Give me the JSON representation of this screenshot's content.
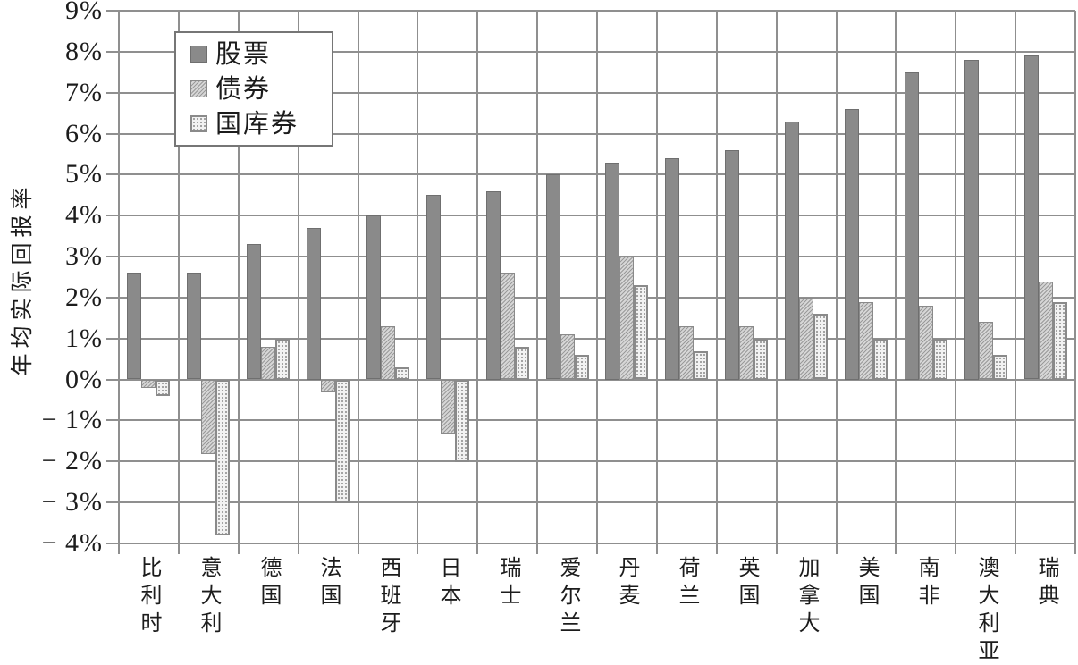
{
  "chart_data": {
    "type": "bar",
    "title": "",
    "xlabel": "",
    "ylabel": "年均实际回报率",
    "categories": [
      "比利时",
      "意大利",
      "德国",
      "法国",
      "西班牙",
      "日本",
      "瑞士",
      "爱尔兰",
      "丹麦",
      "荷兰",
      "英国",
      "加拿大",
      "美国",
      "南非",
      "澳大利亚",
      "瑞典"
    ],
    "series": [
      {
        "name": "股票",
        "values": [
          2.6,
          2.6,
          3.3,
          3.7,
          4.0,
          4.5,
          4.6,
          5.0,
          5.3,
          5.4,
          5.6,
          6.3,
          6.6,
          7.5,
          7.8,
          7.9
        ]
      },
      {
        "name": "债券",
        "values": [
          -0.2,
          -1.8,
          0.8,
          -0.3,
          1.3,
          -1.3,
          2.6,
          1.1,
          3.0,
          1.3,
          1.3,
          2.0,
          1.9,
          1.8,
          1.4,
          2.4
        ]
      },
      {
        "name": "国库券",
        "values": [
          -0.4,
          -3.8,
          1.0,
          -3.0,
          0.3,
          -2.0,
          0.8,
          0.6,
          2.3,
          0.7,
          1.0,
          1.6,
          1.0,
          1.0,
          0.6,
          1.9
        ]
      }
    ],
    "ylim": [
      -4,
      9
    ],
    "ytick_step": 1,
    "ytick_labels": [
      "9%",
      "8%",
      "7%",
      "6%",
      "5%",
      "4%",
      "3%",
      "2%",
      "1%",
      "0%",
      "− 1%",
      "− 2%",
      "− 3%",
      "− 4%"
    ],
    "grid": true,
    "legend_position": "top-left",
    "unit": "%"
  },
  "colors": {
    "stocks_fill": "#8a8a8a",
    "bonds_fill": "#d6d6d6",
    "bills_fill": "#f2f2f2",
    "pattern_ink": "#9a9a9a",
    "grid_line": "#8f8f8f",
    "text": "#1c1c1c",
    "background": "#ffffff"
  }
}
